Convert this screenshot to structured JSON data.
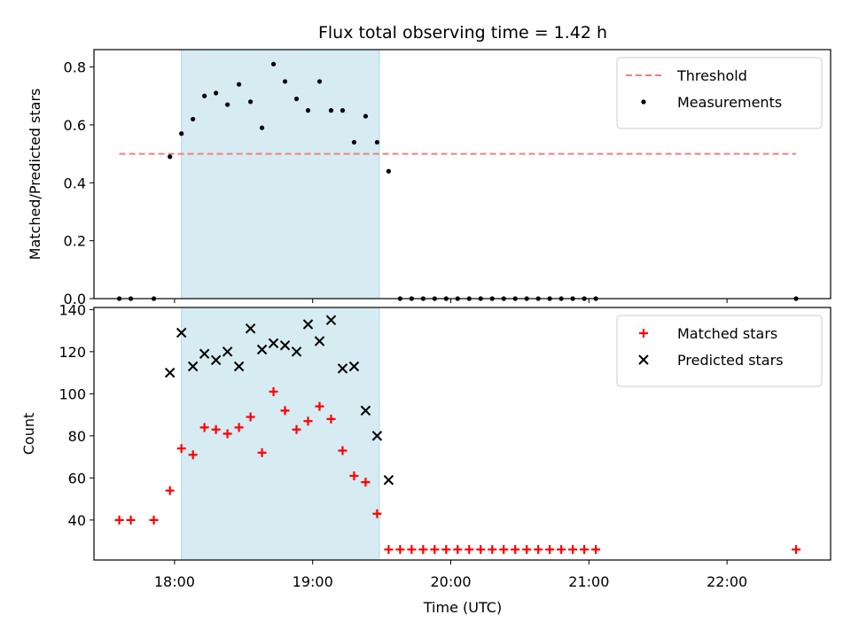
{
  "chart_data": {
    "title": "Flux total observing time = 1.42 h",
    "xlabel": "Time (UTC)",
    "xlim": [
      "17:25",
      "22:45"
    ],
    "x_ticks": [
      "18:00",
      "19:00",
      "20:00",
      "21:00",
      "22:00"
    ],
    "shaded_interval": {
      "start": "18:03",
      "end": "19:29",
      "color": "#add8e6"
    },
    "grid": false,
    "panels": [
      {
        "type": "scatter",
        "ylabel": "Matched/Predicted stars",
        "ylim": [
          0,
          0.86
        ],
        "y_ticks": [
          "0.0",
          "0.2",
          "0.4",
          "0.6",
          "0.8"
        ],
        "legend_placement": "top-right",
        "threshold": {
          "name": "Threshold",
          "value": 0.5,
          "x_start": "17:36",
          "x_end": "22:30",
          "color": "#f08080",
          "style": "dashed"
        },
        "series": [
          {
            "name": "Measurements",
            "marker": "dot",
            "color": "#000000",
            "x": [
              "17:36",
              "17:41",
              "17:51",
              "17:58",
              "18:03",
              "18:08",
              "18:13",
              "18:18",
              "18:23",
              "18:28",
              "18:33",
              "18:38",
              "18:43",
              "18:48",
              "18:53",
              "18:58",
              "19:03",
              "19:08",
              "19:13",
              "19:18",
              "19:23",
              "19:28",
              "19:33",
              "19:38",
              "19:43",
              "19:48",
              "19:53",
              "19:58",
              "20:03",
              "20:08",
              "20:13",
              "20:18",
              "20:23",
              "20:28",
              "20:33",
              "20:38",
              "20:43",
              "20:48",
              "20:53",
              "20:58",
              "21:03",
              "22:30"
            ],
            "y": [
              0.0,
              0.0,
              0.0,
              0.49,
              0.57,
              0.62,
              0.7,
              0.71,
              0.67,
              0.74,
              0.68,
              0.59,
              0.81,
              0.75,
              0.69,
              0.65,
              0.75,
              0.65,
              0.65,
              0.54,
              0.63,
              0.54,
              0.44,
              0.0,
              0.0,
              0.0,
              0.0,
              0.0,
              0.0,
              0.0,
              0.0,
              0.0,
              0.0,
              0.0,
              0.0,
              0.0,
              0.0,
              0.0,
              0.0,
              0.0,
              0.0,
              0.0
            ]
          }
        ]
      },
      {
        "type": "scatter",
        "ylabel": "Count",
        "ylim": [
          21,
          141
        ],
        "y_ticks": [
          "40",
          "60",
          "80",
          "100",
          "120",
          "140"
        ],
        "legend_placement": "top-right",
        "series": [
          {
            "name": "Matched stars",
            "marker": "plus",
            "color": "#ff0000",
            "x": [
              "17:36",
              "17:41",
              "17:51",
              "17:58",
              "18:03",
              "18:08",
              "18:13",
              "18:18",
              "18:23",
              "18:28",
              "18:33",
              "18:38",
              "18:43",
              "18:48",
              "18:53",
              "18:58",
              "19:03",
              "19:08",
              "19:13",
              "19:18",
              "19:23",
              "19:28",
              "19:33",
              "19:38",
              "19:43",
              "19:48",
              "19:53",
              "19:58",
              "20:03",
              "20:08",
              "20:13",
              "20:18",
              "20:23",
              "20:28",
              "20:33",
              "20:38",
              "20:43",
              "20:48",
              "20:53",
              "20:58",
              "21:03",
              "22:30"
            ],
            "y": [
              40,
              40,
              40,
              54,
              74,
              71,
              84,
              83,
              81,
              84,
              89,
              72,
              101,
              92,
              83,
              87,
              94,
              88,
              73,
              61,
              58,
              43,
              26,
              26,
              26,
              26,
              26,
              26,
              26,
              26,
              26,
              26,
              26,
              26,
              26,
              26,
              26,
              26,
              26,
              26,
              26,
              26
            ]
          },
          {
            "name": "Predicted stars",
            "marker": "x",
            "color": "#000000",
            "x": [
              "17:58",
              "18:03",
              "18:08",
              "18:13",
              "18:18",
              "18:23",
              "18:28",
              "18:33",
              "18:38",
              "18:43",
              "18:48",
              "18:53",
              "18:58",
              "19:03",
              "19:08",
              "19:13",
              "19:18",
              "19:23",
              "19:28",
              "19:33"
            ],
            "y": [
              110,
              129,
              113,
              119,
              116,
              120,
              113,
              131,
              121,
              124,
              123,
              120,
              133,
              125,
              135,
              112,
              113,
              92,
              80,
              59
            ]
          }
        ]
      }
    ]
  }
}
